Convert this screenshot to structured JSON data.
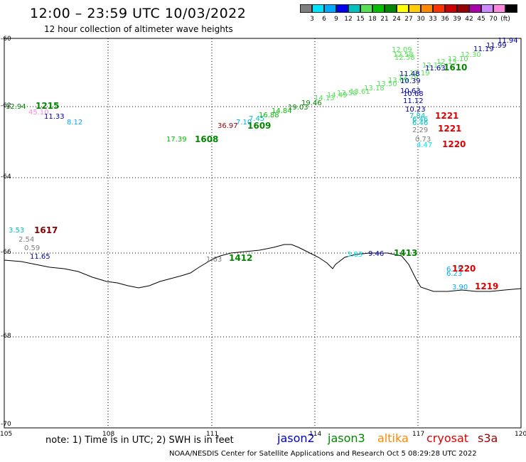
{
  "title": "12:00 – 23:59 UTC 10/03/2022",
  "subtitle": "12 hour collection of altimeter wave heights",
  "colorbar": {
    "colors": [
      "#7f7f7f",
      "#00e5ff",
      "#00aaff",
      "#0000ee",
      "#00c0c0",
      "#55e055",
      "#00c000",
      "#008800",
      "#ffff00",
      "#ffcc00",
      "#ff8800",
      "#ff3300",
      "#cc0000",
      "#990000",
      "#aa00aa",
      "#cc88ff",
      "#ff88dd",
      "#000000"
    ],
    "labels": [
      "3",
      "6",
      "9",
      "12",
      "15",
      "18",
      "21",
      "24",
      "27",
      "30",
      "33",
      "36",
      "39",
      "42",
      "45",
      "70",
      "(ft)"
    ]
  },
  "axes": {
    "y_labels": [
      "-60",
      "-62",
      "-64",
      "-66",
      "-68",
      "-70"
    ],
    "x_labels": [
      "105",
      "108",
      "111",
      "114",
      "117",
      "120"
    ]
  },
  "wave_labels": [
    {
      "text": "12.94",
      "color": "#008800"
    },
    {
      "text": "45.10",
      "color": "#ff88dd"
    },
    {
      "text": "11.33",
      "color": "#0000aa"
    },
    {
      "text": "8.12",
      "color": "#00aaff"
    },
    {
      "text": "17.39",
      "color": "#00c000"
    },
    {
      "text": "36.97",
      "color": "#990000"
    },
    {
      "text": "7.10",
      "color": "#00aaff"
    },
    {
      "text": "7.45",
      "color": "#00c0c0"
    },
    {
      "text": "16.88",
      "color": "#00c000"
    },
    {
      "text": "14.84",
      "color": "#00c000"
    },
    {
      "text": "19.03",
      "color": "#008800"
    },
    {
      "text": "19.46",
      "color": "#008800"
    },
    {
      "text": "14.13",
      "color": "#55e055"
    },
    {
      "text": "14.49",
      "color": "#55e055"
    },
    {
      "text": "13.58",
      "color": "#55e055"
    },
    {
      "text": "13.61",
      "color": "#55e055"
    },
    {
      "text": "13.18",
      "color": "#55e055"
    },
    {
      "text": "13.50",
      "color": "#55e055"
    },
    {
      "text": "13.69",
      "color": "#55e055"
    },
    {
      "text": "12.79",
      "color": "#55e055"
    },
    {
      "text": "12.19",
      "color": "#55e055"
    },
    {
      "text": "12.09",
      "color": "#55e055"
    },
    {
      "text": "12.58",
      "color": "#55e055"
    },
    {
      "text": "12.58",
      "color": "#55e055"
    },
    {
      "text": "12.13",
      "color": "#55e055"
    },
    {
      "text": "12.13",
      "color": "#55e055"
    },
    {
      "text": "12.10",
      "color": "#55e055"
    },
    {
      "text": "12.30",
      "color": "#55e055"
    },
    {
      "text": "11.99",
      "color": "#0000aa"
    },
    {
      "text": "11.94",
      "color": "#0000aa"
    },
    {
      "text": "11.19",
      "color": "#0000aa"
    },
    {
      "text": "11.63",
      "color": "#0000aa"
    },
    {
      "text": "11.48",
      "color": "#0000aa"
    },
    {
      "text": "10.39",
      "color": "#0000aa"
    },
    {
      "text": "10.63",
      "color": "#0000aa"
    },
    {
      "text": "10.68",
      "color": "#0000aa"
    },
    {
      "text": "11.12",
      "color": "#0000aa"
    },
    {
      "text": "10.23",
      "color": "#0000aa"
    },
    {
      "text": "7.84",
      "color": "#00c0c0"
    },
    {
      "text": "6.46",
      "color": "#00c0c0"
    },
    {
      "text": "6.46",
      "color": "#00c0c0"
    },
    {
      "text": "2.29",
      "color": "#7f7f7f"
    },
    {
      "text": "0.73",
      "color": "#7f7f7f"
    },
    {
      "text": "4.47",
      "color": "#00e5ff"
    },
    {
      "text": "3.53",
      "color": "#00c0c0"
    },
    {
      "text": "2.54",
      "color": "#7f7f7f"
    },
    {
      "text": "0.59",
      "color": "#7f7f7f"
    },
    {
      "text": "11.65",
      "color": "#0000aa"
    },
    {
      "text": "1.63",
      "color": "#7f7f7f"
    },
    {
      "text": "3.83",
      "color": "#00e5ff"
    },
    {
      "text": "9.46",
      "color": "#0000aa"
    },
    {
      "text": "6.15",
      "color": "#00aaff"
    },
    {
      "text": "6.23",
      "color": "#00aaff"
    },
    {
      "text": "3.90",
      "color": "#00aaff"
    }
  ],
  "time_labels": [
    {
      "text": "1215",
      "color": "#008800"
    },
    {
      "text": "1608",
      "color": "#008800"
    },
    {
      "text": "1609",
      "color": "#008800"
    },
    {
      "text": "1610",
      "color": "#008800"
    },
    {
      "text": "1221",
      "color": "#dd0000"
    },
    {
      "text": "1221",
      "color": "#dd0000"
    },
    {
      "text": "1220",
      "color": "#dd0000"
    },
    {
      "text": "1617",
      "color": "#880000"
    },
    {
      "text": "1412",
      "color": "#008800"
    },
    {
      "text": "1413",
      "color": "#008800"
    },
    {
      "text": "1220",
      "color": "#dd0000"
    },
    {
      "text": "1219",
      "color": "#dd0000"
    }
  ],
  "footer": {
    "note": "note: 1) Time is in UTC; 2) SWH is in feet",
    "satellites": [
      {
        "name": "jason2",
        "color": "#0000cc"
      },
      {
        "name": "jason3",
        "color": "#008800"
      },
      {
        "name": "altika",
        "color": "#ff8800"
      },
      {
        "name": "cryosat",
        "color": "#dd0000"
      },
      {
        "name": "s3a",
        "color": "#990000"
      }
    ],
    "credit": "NOAA/NESDIS Center for Satellite Applications and Research   Oct  5 08:29:28 UTC 2022"
  }
}
